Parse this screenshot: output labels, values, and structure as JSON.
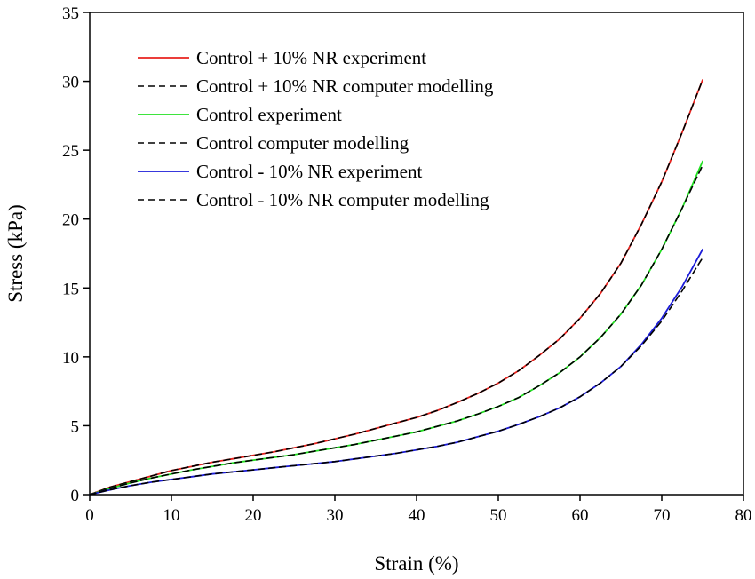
{
  "chart_data": {
    "type": "line",
    "title": "",
    "xlabel": "Strain (%)",
    "ylabel": "Stress (kPa)",
    "xlim": [
      0,
      80
    ],
    "ylim": [
      0,
      35
    ],
    "xticks": [
      0,
      10,
      20,
      30,
      40,
      50,
      60,
      70,
      80
    ],
    "yticks": [
      0,
      5,
      10,
      15,
      20,
      25,
      30,
      35
    ],
    "grid": false,
    "legend_position": "top-left",
    "series": [
      {
        "name": "Control + 10% NR experiment",
        "color": "#e8231e",
        "dash": "solid",
        "x": [
          0,
          2.5,
          5,
          7.5,
          10,
          12.5,
          15,
          17.5,
          20,
          22.5,
          25,
          27.5,
          30,
          32.5,
          35,
          37.5,
          40,
          42.5,
          45,
          47.5,
          50,
          52.5,
          55,
          57.5,
          60,
          62.5,
          65,
          67.5,
          70,
          72.5,
          75
        ],
        "y": [
          0,
          0.55,
          0.95,
          1.35,
          1.75,
          2.05,
          2.35,
          2.6,
          2.85,
          3.1,
          3.4,
          3.7,
          4.05,
          4.4,
          4.8,
          5.2,
          5.6,
          6.1,
          6.7,
          7.35,
          8.1,
          9.0,
          10.1,
          11.3,
          12.8,
          14.6,
          16.8,
          19.6,
          22.7,
          26.3,
          30.1
        ]
      },
      {
        "name": "Control + 10% NR computer modelling",
        "color": "#000000",
        "dash": "dashed",
        "x": [
          0,
          2.5,
          5,
          7.5,
          10,
          12.5,
          15,
          17.5,
          20,
          22.5,
          25,
          27.5,
          30,
          32.5,
          35,
          37.5,
          40,
          42.5,
          45,
          47.5,
          50,
          52.5,
          55,
          57.5,
          60,
          62.5,
          65,
          67.5,
          70,
          72.5,
          75
        ],
        "y": [
          0,
          0.55,
          0.95,
          1.35,
          1.75,
          2.05,
          2.35,
          2.6,
          2.85,
          3.1,
          3.4,
          3.7,
          4.05,
          4.4,
          4.8,
          5.2,
          5.6,
          6.1,
          6.7,
          7.35,
          8.1,
          9.0,
          10.1,
          11.3,
          12.8,
          14.6,
          16.8,
          19.6,
          22.7,
          26.3,
          30.1
        ]
      },
      {
        "name": "Control experiment",
        "color": "#22e022",
        "dash": "solid",
        "x": [
          0,
          2.5,
          5,
          7.5,
          10,
          12.5,
          15,
          17.5,
          20,
          22.5,
          25,
          27.5,
          30,
          32.5,
          35,
          37.5,
          40,
          42.5,
          45,
          47.5,
          50,
          52.5,
          55,
          57.5,
          60,
          62.5,
          65,
          67.5,
          70,
          72.5,
          75
        ],
        "y": [
          0,
          0.45,
          0.85,
          1.2,
          1.5,
          1.8,
          2.05,
          2.3,
          2.5,
          2.7,
          2.9,
          3.15,
          3.4,
          3.65,
          3.95,
          4.25,
          4.55,
          4.95,
          5.35,
          5.85,
          6.4,
          7.05,
          7.9,
          8.85,
          10.0,
          11.4,
          13.1,
          15.2,
          17.8,
          20.8,
          24.2
        ]
      },
      {
        "name": "Control computer modelling",
        "color": "#000000",
        "dash": "dashed",
        "x": [
          0,
          2.5,
          5,
          7.5,
          10,
          12.5,
          15,
          17.5,
          20,
          22.5,
          25,
          27.5,
          30,
          32.5,
          35,
          37.5,
          40,
          42.5,
          45,
          47.5,
          50,
          52.5,
          55,
          57.5,
          60,
          62.5,
          65,
          67.5,
          70,
          72.5,
          75
        ],
        "y": [
          0,
          0.45,
          0.85,
          1.2,
          1.5,
          1.8,
          2.05,
          2.3,
          2.5,
          2.7,
          2.9,
          3.15,
          3.4,
          3.65,
          3.95,
          4.25,
          4.55,
          4.95,
          5.35,
          5.85,
          6.4,
          7.05,
          7.9,
          8.85,
          10.0,
          11.4,
          13.1,
          15.2,
          17.8,
          20.8,
          23.9
        ]
      },
      {
        "name": "Control - 10% NR experiment",
        "color": "#1c1cd8",
        "dash": "solid",
        "x": [
          0,
          2.5,
          5,
          7.5,
          10,
          12.5,
          15,
          17.5,
          20,
          22.5,
          25,
          27.5,
          30,
          32.5,
          35,
          37.5,
          40,
          42.5,
          45,
          47.5,
          50,
          52.5,
          55,
          57.5,
          60,
          62.5,
          65,
          67.5,
          70,
          72.5,
          75
        ],
        "y": [
          0,
          0.35,
          0.65,
          0.9,
          1.1,
          1.3,
          1.5,
          1.65,
          1.8,
          1.95,
          2.1,
          2.25,
          2.4,
          2.6,
          2.8,
          3.0,
          3.25,
          3.5,
          3.8,
          4.2,
          4.6,
          5.1,
          5.65,
          6.3,
          7.1,
          8.1,
          9.3,
          10.9,
          12.8,
          15.1,
          17.8
        ]
      },
      {
        "name": "Control - 10% NR computer modelling",
        "color": "#000000",
        "dash": "dashed",
        "x": [
          0,
          2.5,
          5,
          7.5,
          10,
          12.5,
          15,
          17.5,
          20,
          22.5,
          25,
          27.5,
          30,
          32.5,
          35,
          37.5,
          40,
          42.5,
          45,
          47.5,
          50,
          52.5,
          55,
          57.5,
          60,
          62.5,
          65,
          67.5,
          70,
          72.5,
          75
        ],
        "y": [
          0,
          0.35,
          0.65,
          0.9,
          1.1,
          1.3,
          1.5,
          1.65,
          1.8,
          1.95,
          2.1,
          2.25,
          2.4,
          2.6,
          2.8,
          3.0,
          3.25,
          3.5,
          3.8,
          4.2,
          4.6,
          5.1,
          5.65,
          6.3,
          7.1,
          8.1,
          9.3,
          10.8,
          12.6,
          14.8,
          17.2
        ]
      }
    ]
  }
}
